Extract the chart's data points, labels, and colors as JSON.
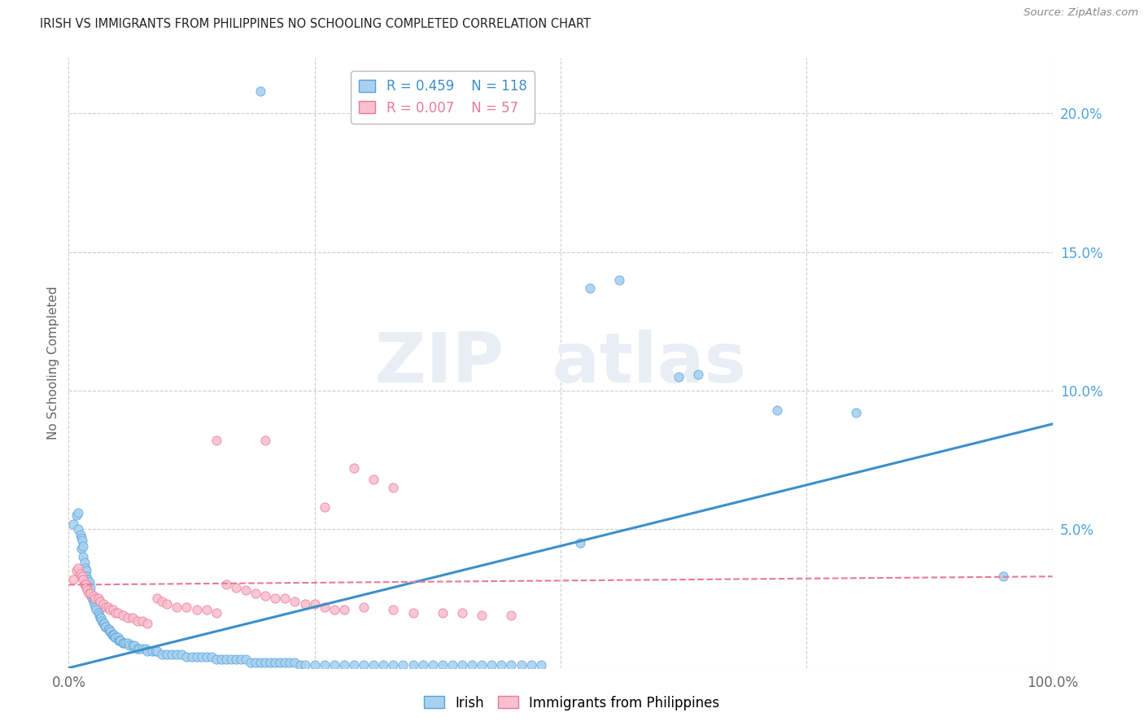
{
  "title": "IRISH VS IMMIGRANTS FROM PHILIPPINES NO SCHOOLING COMPLETED CORRELATION CHART",
  "source": "Source: ZipAtlas.com",
  "ylabel": "No Schooling Completed",
  "xlim": [
    0,
    1.0
  ],
  "ylim": [
    0,
    0.22
  ],
  "legend_irish_R": "0.459",
  "legend_irish_N": "118",
  "legend_phil_R": "0.007",
  "legend_phil_N": "57",
  "irish_color": "#a8d1f0",
  "irish_edge_color": "#5ba3d9",
  "phil_color": "#f9c0cf",
  "phil_edge_color": "#e87a96",
  "irish_line_color": "#3d8fc8",
  "phil_line_color": "#e87a96",
  "ytick_color": "#4da3e0",
  "watermark_color": "#e8eef4",
  "irish_trendline": [
    0.0,
    0.0,
    1.0,
    0.088
  ],
  "phil_trendline": [
    0.0,
    0.03,
    1.0,
    0.033
  ],
  "irish_x": [
    0.005,
    0.008,
    0.01,
    0.01,
    0.012,
    0.013,
    0.013,
    0.014,
    0.015,
    0.015,
    0.016,
    0.017,
    0.018,
    0.018,
    0.019,
    0.02,
    0.021,
    0.021,
    0.022,
    0.022,
    0.023,
    0.024,
    0.025,
    0.026,
    0.027,
    0.028,
    0.03,
    0.031,
    0.032,
    0.033,
    0.034,
    0.035,
    0.036,
    0.037,
    0.038,
    0.04,
    0.041,
    0.042,
    0.043,
    0.044,
    0.045,
    0.046,
    0.047,
    0.048,
    0.05,
    0.051,
    0.052,
    0.053,
    0.055,
    0.056,
    0.058,
    0.06,
    0.062,
    0.065,
    0.067,
    0.07,
    0.072,
    0.075,
    0.078,
    0.08,
    0.085,
    0.088,
    0.09,
    0.095,
    0.1,
    0.105,
    0.11,
    0.115,
    0.12,
    0.125,
    0.13,
    0.135,
    0.14,
    0.145,
    0.15,
    0.155,
    0.16,
    0.165,
    0.17,
    0.175,
    0.18,
    0.185,
    0.19,
    0.195,
    0.2,
    0.205,
    0.21,
    0.215,
    0.22,
    0.225,
    0.23,
    0.235,
    0.24,
    0.25,
    0.26,
    0.27,
    0.28,
    0.29,
    0.3,
    0.31,
    0.32,
    0.33,
    0.34,
    0.35,
    0.36,
    0.37,
    0.38,
    0.39,
    0.4,
    0.41,
    0.42,
    0.43,
    0.44,
    0.45,
    0.46,
    0.47,
    0.48,
    0.52
  ],
  "irish_y": [
    0.052,
    0.055,
    0.056,
    0.05,
    0.048,
    0.047,
    0.043,
    0.046,
    0.044,
    0.04,
    0.038,
    0.036,
    0.035,
    0.033,
    0.032,
    0.03,
    0.028,
    0.031,
    0.027,
    0.029,
    0.026,
    0.025,
    0.024,
    0.023,
    0.022,
    0.021,
    0.02,
    0.019,
    0.018,
    0.018,
    0.017,
    0.016,
    0.016,
    0.015,
    0.015,
    0.014,
    0.014,
    0.013,
    0.013,
    0.012,
    0.012,
    0.012,
    0.011,
    0.011,
    0.011,
    0.01,
    0.01,
    0.01,
    0.009,
    0.009,
    0.009,
    0.009,
    0.008,
    0.008,
    0.008,
    0.007,
    0.007,
    0.007,
    0.007,
    0.006,
    0.006,
    0.006,
    0.006,
    0.005,
    0.005,
    0.005,
    0.005,
    0.005,
    0.004,
    0.004,
    0.004,
    0.004,
    0.004,
    0.004,
    0.003,
    0.003,
    0.003,
    0.003,
    0.003,
    0.003,
    0.003,
    0.002,
    0.002,
    0.002,
    0.002,
    0.002,
    0.002,
    0.002,
    0.002,
    0.002,
    0.002,
    0.001,
    0.001,
    0.001,
    0.001,
    0.001,
    0.001,
    0.001,
    0.001,
    0.001,
    0.001,
    0.001,
    0.001,
    0.001,
    0.001,
    0.001,
    0.001,
    0.001,
    0.001,
    0.001,
    0.001,
    0.001,
    0.001,
    0.001,
    0.001,
    0.001,
    0.001,
    0.045
  ],
  "irish_outlier_x": [
    0.195,
    0.53,
    0.56,
    0.62,
    0.64,
    0.72,
    0.8,
    0.95
  ],
  "irish_outlier_y": [
    0.208,
    0.137,
    0.14,
    0.105,
    0.106,
    0.093,
    0.092,
    0.033
  ],
  "phil_x": [
    0.005,
    0.008,
    0.01,
    0.012,
    0.014,
    0.015,
    0.016,
    0.017,
    0.018,
    0.019,
    0.02,
    0.022,
    0.025,
    0.027,
    0.03,
    0.032,
    0.035,
    0.038,
    0.04,
    0.042,
    0.045,
    0.048,
    0.05,
    0.055,
    0.06,
    0.065,
    0.07,
    0.075,
    0.08,
    0.09,
    0.095,
    0.1,
    0.11,
    0.12,
    0.13,
    0.14,
    0.15,
    0.16,
    0.17,
    0.18,
    0.19,
    0.2,
    0.21,
    0.22,
    0.23,
    0.24,
    0.25,
    0.26,
    0.27,
    0.28,
    0.3,
    0.33,
    0.35,
    0.38,
    0.4,
    0.42,
    0.45
  ],
  "phil_y": [
    0.032,
    0.035,
    0.036,
    0.034,
    0.033,
    0.032,
    0.03,
    0.03,
    0.029,
    0.028,
    0.027,
    0.027,
    0.026,
    0.025,
    0.025,
    0.024,
    0.023,
    0.022,
    0.022,
    0.021,
    0.021,
    0.02,
    0.02,
    0.019,
    0.018,
    0.018,
    0.017,
    0.017,
    0.016,
    0.025,
    0.024,
    0.023,
    0.022,
    0.022,
    0.021,
    0.021,
    0.02,
    0.03,
    0.029,
    0.028,
    0.027,
    0.026,
    0.025,
    0.025,
    0.024,
    0.023,
    0.023,
    0.022,
    0.021,
    0.021,
    0.022,
    0.021,
    0.02,
    0.02,
    0.02,
    0.019,
    0.019
  ],
  "phil_outlier_x": [
    0.15,
    0.2,
    0.26,
    0.29,
    0.31,
    0.33
  ],
  "phil_outlier_y": [
    0.082,
    0.082,
    0.058,
    0.072,
    0.068,
    0.065
  ]
}
